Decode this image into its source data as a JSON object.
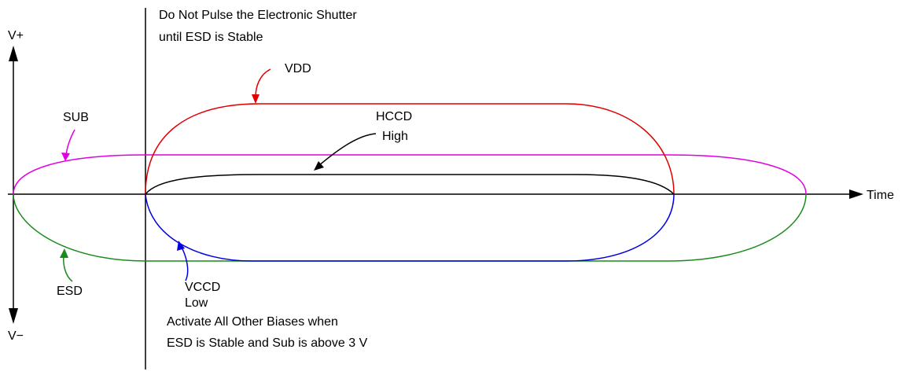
{
  "axes": {
    "y_top": "V+",
    "y_bottom": "V−",
    "x": "Time"
  },
  "annotations": {
    "top": [
      "Do Not Pulse the Electronic Shutter",
      "until ESD is Stable"
    ],
    "bottom": [
      "Activate All Other Biases when",
      "ESD is Stable and Sub is above 3 V"
    ]
  },
  "curves": {
    "vdd": "VDD",
    "sub": "SUB",
    "hccd": [
      "HCCD",
      "High"
    ],
    "esd": "ESD",
    "vccd": [
      "VCCD",
      "Low"
    ]
  }
}
